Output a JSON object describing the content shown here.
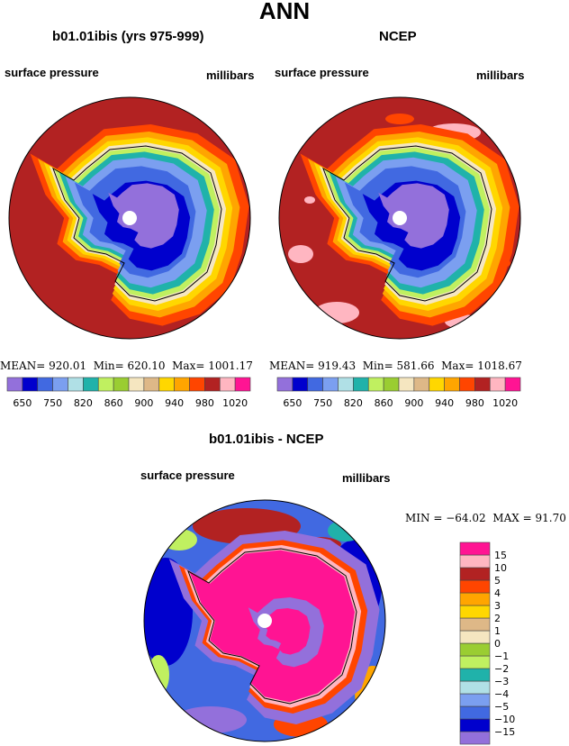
{
  "title": "ANN",
  "chart_data": [
    {
      "type": "contour-map",
      "projection": "south polar stereographic",
      "title": "b01.01ibis (yrs 975-999)",
      "left_label": "surface pressure",
      "right_label": "millibars",
      "stats": {
        "mean_label": "MEAN=",
        "mean": "920.01",
        "min_label": "Min=",
        "min": "620.10",
        "max_label": "Max=",
        "max": "1001.17"
      },
      "colorbar": {
        "orientation": "horizontal",
        "colors": [
          "#9370DB",
          "#0000CD",
          "#4169E1",
          "#7B9FF0",
          "#B0E0E6",
          "#20B2AA",
          "#C0F060",
          "#9ACD32",
          "#F5E6C0",
          "#DEB887",
          "#FFD700",
          "#FFA500",
          "#FF4500",
          "#B22222",
          "#FFB6C1",
          "#FF1493"
        ],
        "tick_labels": [
          "650",
          "750",
          "820",
          "860",
          "900",
          "940",
          "980",
          "1020"
        ]
      }
    },
    {
      "type": "contour-map",
      "projection": "south polar stereographic",
      "title": "NCEP",
      "left_label": "surface pressure",
      "right_label": "millibars",
      "stats": {
        "mean_label": "MEAN=",
        "mean": "919.43",
        "min_label": "Min=",
        "min": "581.66",
        "max_label": "Max=",
        "max": "1018.67"
      },
      "colorbar": {
        "orientation": "horizontal",
        "colors": [
          "#9370DB",
          "#0000CD",
          "#4169E1",
          "#7B9FF0",
          "#B0E0E6",
          "#20B2AA",
          "#C0F060",
          "#9ACD32",
          "#F5E6C0",
          "#DEB887",
          "#FFD700",
          "#FFA500",
          "#FF4500",
          "#B22222",
          "#FFB6C1",
          "#FF1493"
        ],
        "tick_labels": [
          "650",
          "750",
          "820",
          "860",
          "900",
          "940",
          "980",
          "1020"
        ]
      }
    },
    {
      "type": "contour-map",
      "projection": "south polar stereographic",
      "title": "b01.01ibis - NCEP",
      "left_label": "surface pressure",
      "right_label": "millibars",
      "stats": {
        "min_label": "MIN =",
        "min": "−64.02",
        "max_label": "MAX =",
        "max": "91.70"
      },
      "colorbar": {
        "orientation": "vertical",
        "colors": [
          "#9370DB",
          "#0000CD",
          "#4169E1",
          "#7B9FF0",
          "#B0E0E6",
          "#20B2AA",
          "#C0F060",
          "#9ACD32",
          "#F5E6C0",
          "#DEB887",
          "#FFD700",
          "#FFA500",
          "#FF4500",
          "#B22222",
          "#FFB6C1",
          "#FF1493"
        ],
        "tick_labels": [
          "−15",
          "−10",
          "−5",
          "−4",
          "−3",
          "−2",
          "−1",
          "0",
          "1",
          "2",
          "3",
          "4",
          "5",
          "10",
          "15"
        ]
      }
    }
  ]
}
